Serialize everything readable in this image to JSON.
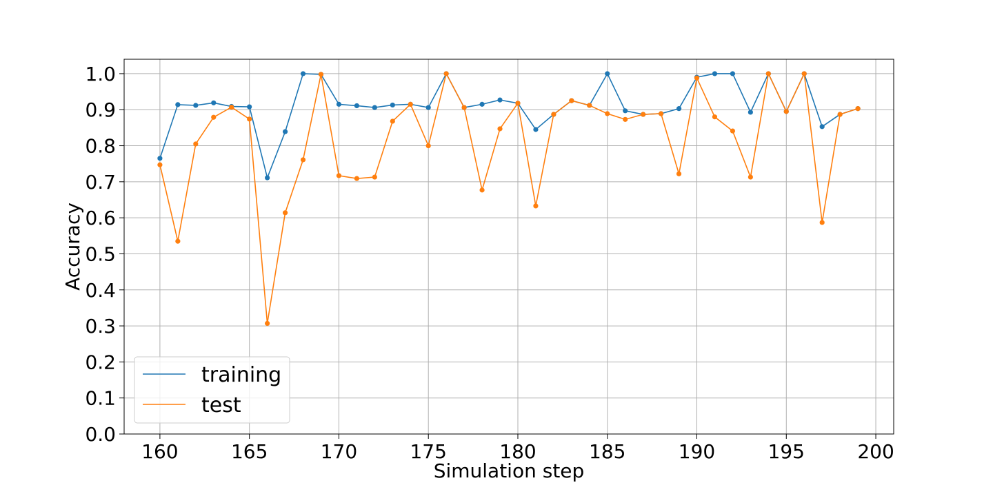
{
  "chart_data": {
    "type": "line",
    "title": "",
    "xlabel": "Simulation step",
    "ylabel": "Accuracy",
    "xlim": [
      158,
      201
    ],
    "ylim": [
      0,
      1.04
    ],
    "xticks": [
      160,
      165,
      170,
      175,
      180,
      185,
      190,
      195,
      200
    ],
    "xtick_labels": [
      "160",
      "165",
      "170",
      "175",
      "180",
      "185",
      "190",
      "195",
      "200"
    ],
    "yticks": [
      0.0,
      0.1,
      0.2,
      0.3,
      0.4,
      0.5,
      0.6,
      0.7,
      0.8,
      0.9,
      1.0
    ],
    "ytick_labels": [
      "0.0",
      "0.1",
      "0.2",
      "0.3",
      "0.4",
      "0.5",
      "0.6",
      "0.7",
      "0.8",
      "0.9",
      "1.0"
    ],
    "grid": true,
    "legend_position": "lower-left",
    "x": [
      160,
      161,
      162,
      163,
      164,
      165,
      166,
      167,
      168,
      169,
      170,
      171,
      172,
      173,
      174,
      175,
      176,
      177,
      178,
      179,
      180,
      181,
      182,
      183,
      184,
      185,
      186,
      187,
      188,
      189,
      190,
      191,
      192,
      193,
      194,
      195,
      196,
      197,
      198,
      199
    ],
    "series": [
      {
        "name": "training",
        "color": "#1f77b4",
        "values": [
          0.765,
          0.914,
          0.912,
          0.919,
          0.909,
          0.908,
          0.711,
          0.839,
          1.0,
          0.998,
          0.915,
          0.911,
          0.906,
          0.913,
          0.915,
          0.906,
          1.0,
          0.906,
          0.915,
          0.927,
          0.918,
          0.845,
          0.887,
          0.925,
          0.912,
          1.0,
          0.897,
          0.887,
          0.889,
          0.903,
          0.99,
          1.0,
          1.0,
          0.893,
          1.0,
          0.895,
          1.0,
          0.853,
          0.887,
          0.903
        ]
      },
      {
        "name": "test",
        "color": "#ff7f0e",
        "values": [
          0.747,
          0.535,
          0.805,
          0.879,
          0.907,
          0.874,
          0.307,
          0.614,
          0.761,
          0.998,
          0.717,
          0.709,
          0.713,
          0.868,
          0.915,
          0.8,
          1.0,
          0.906,
          0.677,
          0.847,
          0.918,
          0.633,
          0.887,
          0.925,
          0.912,
          0.889,
          0.873,
          0.887,
          0.889,
          0.722,
          0.988,
          0.88,
          0.841,
          0.713,
          1.0,
          0.895,
          1.0,
          0.587,
          0.887,
          0.903
        ]
      }
    ]
  }
}
